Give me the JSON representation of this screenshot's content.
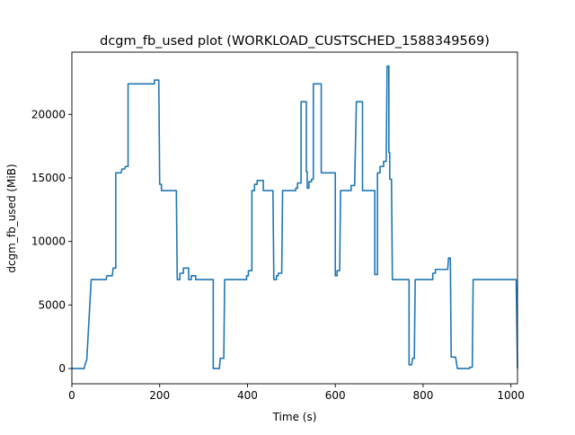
{
  "chart_data": {
    "type": "line",
    "title": "dcgm_fb_used plot (WORKLOAD_CUSTSCHED_1588349569)",
    "xlabel": "Time (s)",
    "ylabel": "dcgm_fb_used (MiB)",
    "xlim": [
      0,
      1015
    ],
    "ylim": [
      -1200,
      24900
    ],
    "x_ticks": [
      0,
      200,
      400,
      600,
      800,
      1000
    ],
    "y_ticks": [
      0,
      5000,
      10000,
      15000,
      20000
    ],
    "grid": false,
    "color": "#1f77b4",
    "series": [
      {
        "step": "post",
        "points": [
          [
            0,
            0
          ],
          [
            28,
            0
          ],
          [
            30,
            300
          ],
          [
            34,
            700
          ],
          [
            44,
            7000
          ],
          [
            78,
            7000
          ],
          [
            80,
            7300
          ],
          [
            92,
            7300
          ],
          [
            94,
            7900
          ],
          [
            100,
            7900
          ],
          [
            100,
            15400
          ],
          [
            112,
            15400
          ],
          [
            114,
            15700
          ],
          [
            120,
            15700
          ],
          [
            122,
            15900
          ],
          [
            128,
            15900
          ],
          [
            128,
            22400
          ],
          [
            188,
            22400
          ],
          [
            188,
            22700
          ],
          [
            198,
            22700
          ],
          [
            200,
            14500
          ],
          [
            204,
            14500
          ],
          [
            204,
            14000
          ],
          [
            238,
            14000
          ],
          [
            240,
            7000
          ],
          [
            246,
            7000
          ],
          [
            246,
            7500
          ],
          [
            254,
            7500
          ],
          [
            254,
            7900
          ],
          [
            266,
            7900
          ],
          [
            266,
            7000
          ],
          [
            272,
            7000
          ],
          [
            272,
            7300
          ],
          [
            282,
            7300
          ],
          [
            282,
            7000
          ],
          [
            322,
            7000
          ],
          [
            322,
            0
          ],
          [
            336,
            0
          ],
          [
            338,
            800
          ],
          [
            346,
            800
          ],
          [
            348,
            7000
          ],
          [
            398,
            7000
          ],
          [
            398,
            7300
          ],
          [
            402,
            7300
          ],
          [
            402,
            7700
          ],
          [
            410,
            7700
          ],
          [
            410,
            14000
          ],
          [
            416,
            14000
          ],
          [
            416,
            14500
          ],
          [
            422,
            14500
          ],
          [
            422,
            14800
          ],
          [
            436,
            14800
          ],
          [
            436,
            14000
          ],
          [
            458,
            14000
          ],
          [
            460,
            7000
          ],
          [
            466,
            7000
          ],
          [
            466,
            7300
          ],
          [
            470,
            7300
          ],
          [
            470,
            7500
          ],
          [
            478,
            7500
          ],
          [
            480,
            14000
          ],
          [
            510,
            14000
          ],
          [
            510,
            14200
          ],
          [
            514,
            14200
          ],
          [
            514,
            14600
          ],
          [
            522,
            14600
          ],
          [
            522,
            21000
          ],
          [
            534,
            21000
          ],
          [
            534,
            15500
          ],
          [
            536,
            15500
          ],
          [
            536,
            14200
          ],
          [
            540,
            14200
          ],
          [
            540,
            14700
          ],
          [
            546,
            14700
          ],
          [
            546,
            14900
          ],
          [
            550,
            14900
          ],
          [
            550,
            22400
          ],
          [
            568,
            22400
          ],
          [
            568,
            15400
          ],
          [
            600,
            15400
          ],
          [
            600,
            7300
          ],
          [
            604,
            7300
          ],
          [
            604,
            7700
          ],
          [
            610,
            7700
          ],
          [
            612,
            14000
          ],
          [
            636,
            14000
          ],
          [
            636,
            14400
          ],
          [
            644,
            14400
          ],
          [
            648,
            21000
          ],
          [
            662,
            21000
          ],
          [
            662,
            14000
          ],
          [
            690,
            14000
          ],
          [
            690,
            7400
          ],
          [
            696,
            7400
          ],
          [
            696,
            15400
          ],
          [
            702,
            15400
          ],
          [
            702,
            15900
          ],
          [
            710,
            15900
          ],
          [
            710,
            16300
          ],
          [
            716,
            16300
          ],
          [
            718,
            23800
          ],
          [
            722,
            23800
          ],
          [
            722,
            17000
          ],
          [
            724,
            17000
          ],
          [
            724,
            14900
          ],
          [
            728,
            14900
          ],
          [
            730,
            7000
          ],
          [
            768,
            7000
          ],
          [
            768,
            300
          ],
          [
            774,
            300
          ],
          [
            776,
            800
          ],
          [
            780,
            800
          ],
          [
            782,
            7000
          ],
          [
            822,
            7000
          ],
          [
            822,
            7500
          ],
          [
            828,
            7500
          ],
          [
            828,
            7800
          ],
          [
            856,
            7800
          ],
          [
            858,
            8700
          ],
          [
            862,
            8700
          ],
          [
            864,
            900
          ],
          [
            874,
            900
          ],
          [
            878,
            0
          ],
          [
            906,
            0
          ],
          [
            906,
            100
          ],
          [
            912,
            100
          ],
          [
            914,
            7000
          ],
          [
            1012,
            7000
          ],
          [
            1015,
            0
          ]
        ]
      }
    ]
  }
}
